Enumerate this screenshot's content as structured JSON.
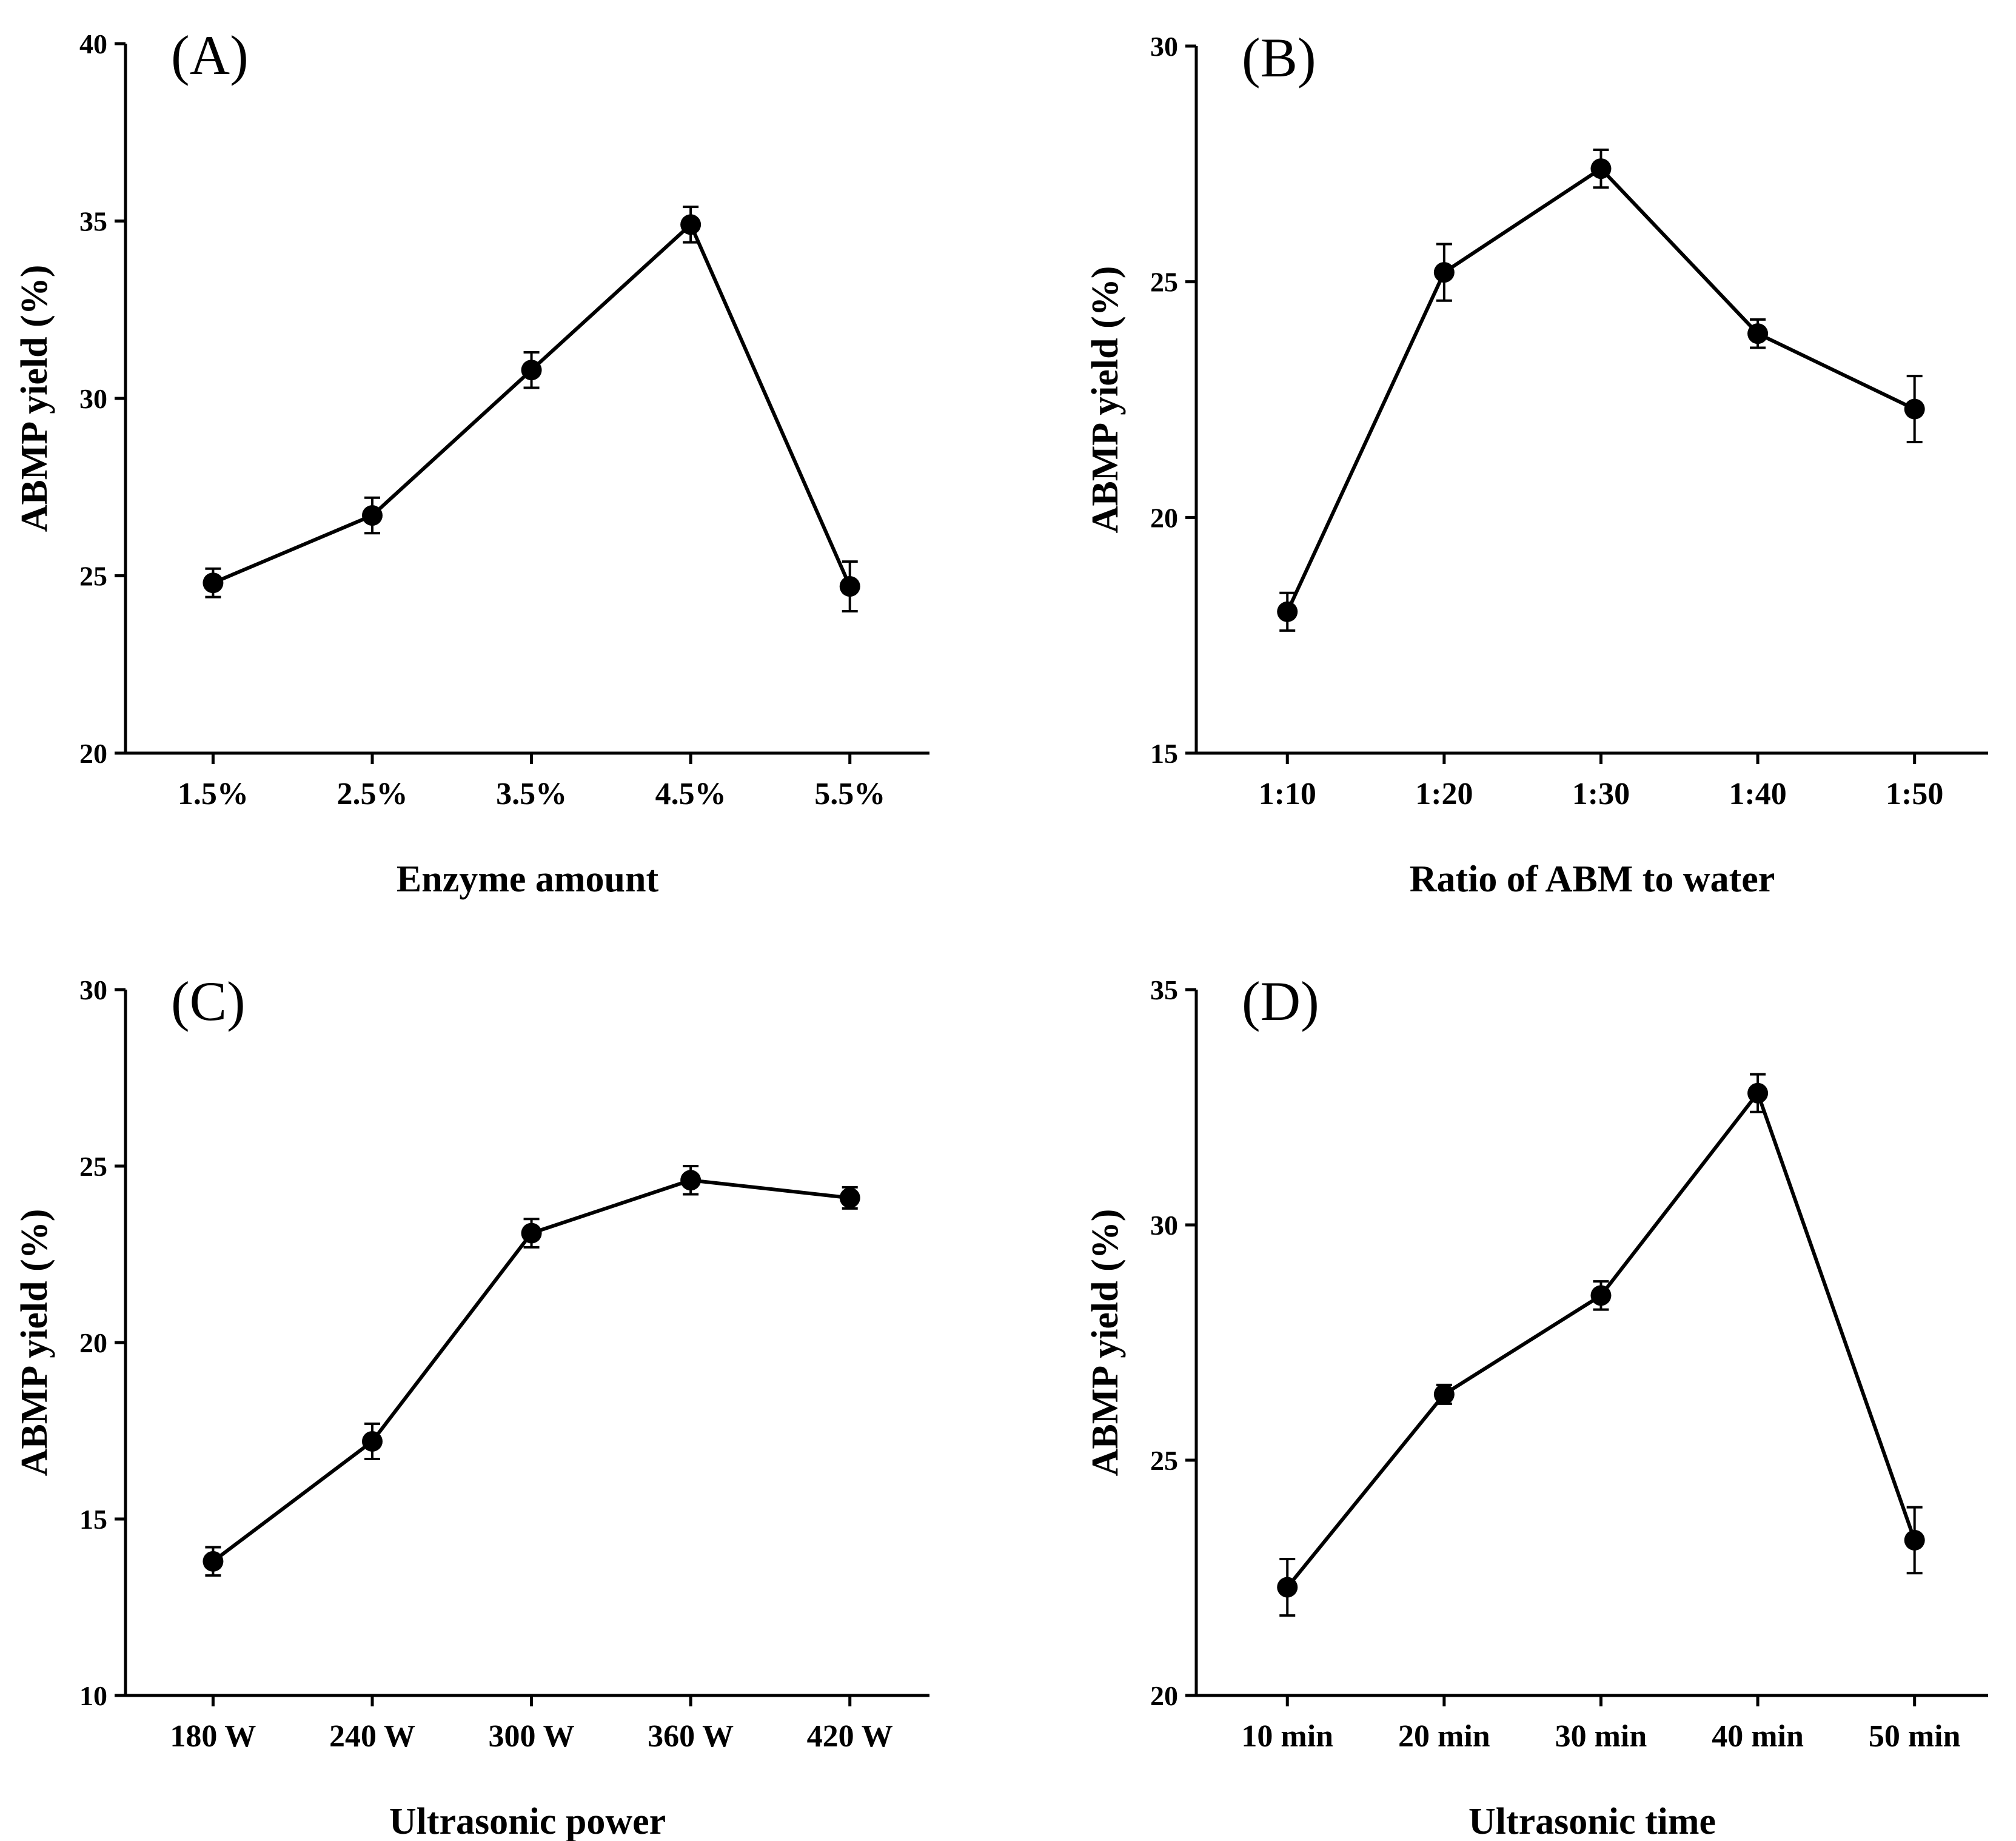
{
  "chart_data": [
    {
      "type": "line",
      "panel_label": "(A)",
      "xlabel": "Enzyme amount",
      "ylabel": "ABMP yield (%)",
      "categories": [
        "1.5%",
        "2.5%",
        "3.5%",
        "4.5%",
        "5.5%"
      ],
      "values": [
        24.8,
        26.7,
        30.8,
        34.9,
        24.7
      ],
      "errors": [
        0.4,
        0.5,
        0.5,
        0.5,
        0.7
      ],
      "ylim": [
        20,
        40
      ],
      "yticks": [
        "20",
        "25",
        "30",
        "35",
        "40"
      ]
    },
    {
      "type": "line",
      "panel_label": "(B)",
      "xlabel": "Ratio of ABM to water",
      "ylabel": "ABMP yield (%)",
      "categories": [
        "1:10",
        "1:20",
        "1:30",
        "1:40",
        "1:50"
      ],
      "values": [
        18.0,
        25.2,
        27.4,
        23.9,
        22.3
      ],
      "errors": [
        0.4,
        0.6,
        0.4,
        0.3,
        0.7
      ],
      "ylim": [
        15,
        30
      ],
      "yticks": [
        "15",
        "20",
        "25",
        "30"
      ]
    },
    {
      "type": "line",
      "panel_label": "(C)",
      "xlabel": "Ultrasonic power",
      "ylabel": "ABMP yield (%)",
      "categories": [
        "180 W",
        "240 W",
        "300 W",
        "360 W",
        "420 W"
      ],
      "values": [
        13.8,
        17.2,
        23.1,
        24.6,
        24.1
      ],
      "errors": [
        0.4,
        0.5,
        0.4,
        0.4,
        0.3
      ],
      "ylim": [
        10,
        30
      ],
      "yticks": [
        "10",
        "15",
        "20",
        "25",
        "30"
      ]
    },
    {
      "type": "line",
      "panel_label": "(D)",
      "xlabel": "Ultrasonic time",
      "ylabel": "ABMP yield (%)",
      "categories": [
        "10 min",
        "20 min",
        "30 min",
        "40 min",
        "50 min"
      ],
      "values": [
        22.3,
        26.4,
        28.5,
        32.8,
        23.3
      ],
      "errors": [
        0.6,
        0.2,
        0.3,
        0.4,
        0.7
      ],
      "ylim": [
        20,
        35
      ],
      "yticks": [
        "20",
        "25",
        "30",
        "35"
      ]
    }
  ]
}
